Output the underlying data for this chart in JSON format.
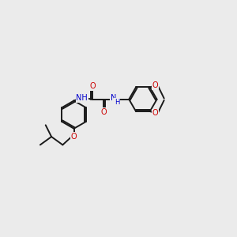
{
  "background_color": "#ebebeb",
  "bond_color": "#1a1a1a",
  "atom_colors": {
    "O": "#cc0000",
    "N": "#0000cc",
    "C": "#1a1a1a"
  },
  "figsize": [
    3.0,
    3.0
  ],
  "dpi": 100
}
